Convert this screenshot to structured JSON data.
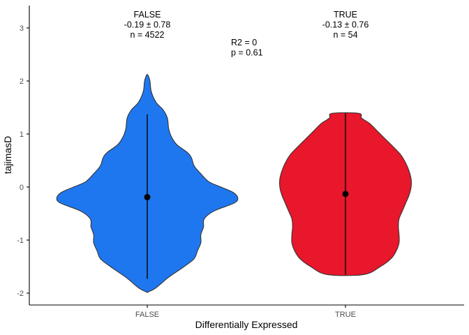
{
  "chart_data": {
    "type": "violin",
    "xlabel": "Differentially Expressed",
    "ylabel": "tajimasD",
    "categories": [
      "FALSE",
      "TRUE"
    ],
    "ylim": [
      -2.2,
      3.4
    ],
    "yticks": [
      -2,
      -1,
      0,
      1,
      2,
      3
    ],
    "grid": false,
    "legend": "none",
    "groups": [
      {
        "category": "FALSE",
        "color": "#1f77f0",
        "mean": -0.19,
        "sd": 0.78,
        "n": 4522,
        "range": [
          -1.73,
          1.37
        ],
        "violin_min": -1.98,
        "violin_max": 2.11,
        "label_lines": [
          "FALSE",
          "-0.19 ± 0.78",
          "n = 4522"
        ],
        "density": [
          [
            -1.98,
            0.01
          ],
          [
            -1.9,
            0.13
          ],
          [
            -1.7,
            0.32
          ],
          [
            -1.5,
            0.55
          ],
          [
            -1.35,
            0.7
          ],
          [
            -1.2,
            0.75
          ],
          [
            -1.05,
            0.8
          ],
          [
            -0.9,
            0.8
          ],
          [
            -0.75,
            0.84
          ],
          [
            -0.6,
            0.85
          ],
          [
            -0.45,
            1.0
          ],
          [
            -0.3,
            1.3
          ],
          [
            -0.2,
            1.35
          ],
          [
            -0.1,
            1.28
          ],
          [
            0.0,
            1.1
          ],
          [
            0.1,
            0.92
          ],
          [
            0.25,
            0.8
          ],
          [
            0.4,
            0.7
          ],
          [
            0.55,
            0.66
          ],
          [
            0.65,
            0.6
          ],
          [
            0.8,
            0.44
          ],
          [
            0.95,
            0.36
          ],
          [
            1.1,
            0.32
          ],
          [
            1.3,
            0.3
          ],
          [
            1.45,
            0.24
          ],
          [
            1.6,
            0.13
          ],
          [
            1.8,
            0.06
          ],
          [
            2.0,
            0.04
          ],
          [
            2.11,
            0.01
          ]
        ]
      },
      {
        "category": "TRUE",
        "color": "#e8172b",
        "mean": -0.13,
        "sd": 0.76,
        "n": 54,
        "range": [
          -1.65,
          1.39
        ],
        "violin_min": -1.65,
        "violin_max": 1.39,
        "label_lines": [
          "TRUE",
          "-0.13 ± 0.76",
          "n = 54"
        ],
        "density": [
          [
            -1.65,
            0.27
          ],
          [
            -1.5,
            0.52
          ],
          [
            -1.35,
            0.68
          ],
          [
            -1.2,
            0.76
          ],
          [
            -1.05,
            0.8
          ],
          [
            -0.9,
            0.8
          ],
          [
            -0.75,
            0.79
          ],
          [
            -0.6,
            0.8
          ],
          [
            -0.45,
            0.85
          ],
          [
            -0.3,
            0.9
          ],
          [
            -0.15,
            0.95
          ],
          [
            0.0,
            0.98
          ],
          [
            0.15,
            0.98
          ],
          [
            0.3,
            0.95
          ],
          [
            0.45,
            0.9
          ],
          [
            0.6,
            0.83
          ],
          [
            0.75,
            0.72
          ],
          [
            0.9,
            0.6
          ],
          [
            1.05,
            0.48
          ],
          [
            1.2,
            0.36
          ],
          [
            1.3,
            0.24
          ],
          [
            1.39,
            0.2
          ]
        ]
      }
    ],
    "stats_lines": [
      "R2 = 0",
      "p = 0.61"
    ]
  }
}
